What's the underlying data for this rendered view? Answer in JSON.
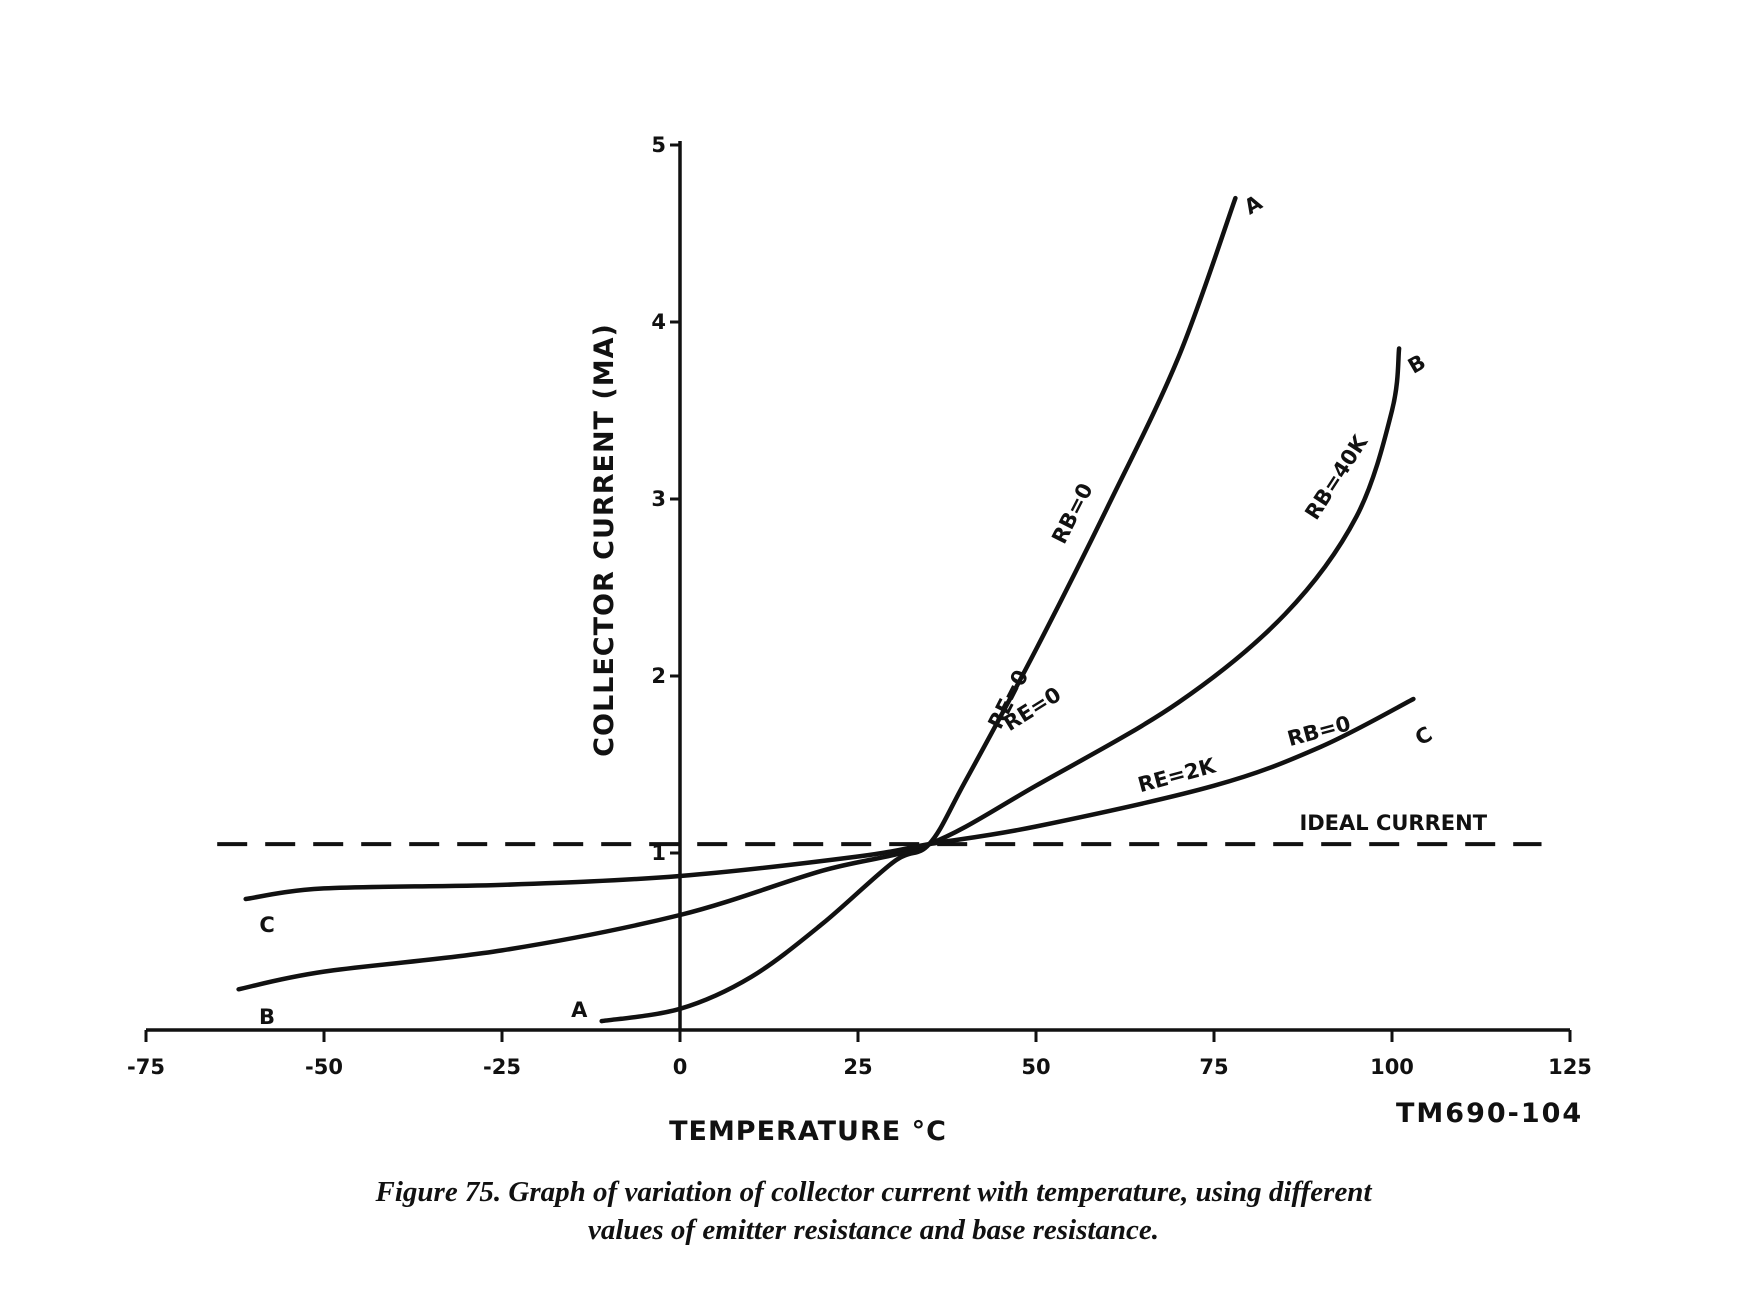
{
  "figure_code": "TM690-104",
  "caption": {
    "line1": "Figure 75.   Graph of variation of collector current with temperature, using different",
    "line2": "values of emitter resistance and base resistance."
  },
  "colors": {
    "ink": "#111111",
    "background": "#ffffff"
  },
  "chart_data": {
    "type": "line",
    "xlabel": "TEMPERATURE °C",
    "ylabel": "COLLECTOR CURRENT (MA)",
    "xlim": [
      -75,
      125
    ],
    "ylim": [
      0,
      5
    ],
    "x_ticks": [
      -75,
      -50,
      -25,
      0,
      25,
      50,
      75,
      100,
      125
    ],
    "x_tick_labels": [
      "-75",
      "-50",
      "-25",
      "0",
      "25",
      "50",
      "75",
      "100",
      "125"
    ],
    "y_ticks": [
      1,
      2,
      3,
      4,
      5
    ],
    "y_tick_labels": [
      "1",
      "2",
      "3",
      "4",
      "5"
    ],
    "grid": false,
    "series": [
      {
        "name": "A",
        "condition_labels": [
          "RE=0",
          "RB=0"
        ],
        "x": [
          -11,
          0,
          10,
          20,
          30,
          35,
          40,
          50,
          60,
          70,
          78
        ],
        "y": [
          0.05,
          0.12,
          0.3,
          0.6,
          0.95,
          1.05,
          1.4,
          2.15,
          2.95,
          3.8,
          4.7
        ]
      },
      {
        "name": "B",
        "condition_labels": [
          "RE=0",
          "RB=40K"
        ],
        "x": [
          -62,
          -50,
          -25,
          0,
          20,
          35,
          50,
          70,
          85,
          95,
          100,
          101
        ],
        "y": [
          0.23,
          0.33,
          0.45,
          0.65,
          0.9,
          1.05,
          1.38,
          1.85,
          2.35,
          2.9,
          3.5,
          3.85
        ]
      },
      {
        "name": "C",
        "condition_labels": [
          "RE=2K",
          "RB=0"
        ],
        "x": [
          -61,
          -50,
          -25,
          0,
          25,
          35,
          50,
          75,
          90,
          103
        ],
        "y": [
          0.74,
          0.8,
          0.82,
          0.87,
          0.98,
          1.05,
          1.15,
          1.38,
          1.6,
          1.87
        ]
      }
    ],
    "reference_line": {
      "label": "IDEAL CURRENT",
      "y": 1.05,
      "x_range": [
        -65,
        121
      ],
      "style": "dashed"
    }
  }
}
